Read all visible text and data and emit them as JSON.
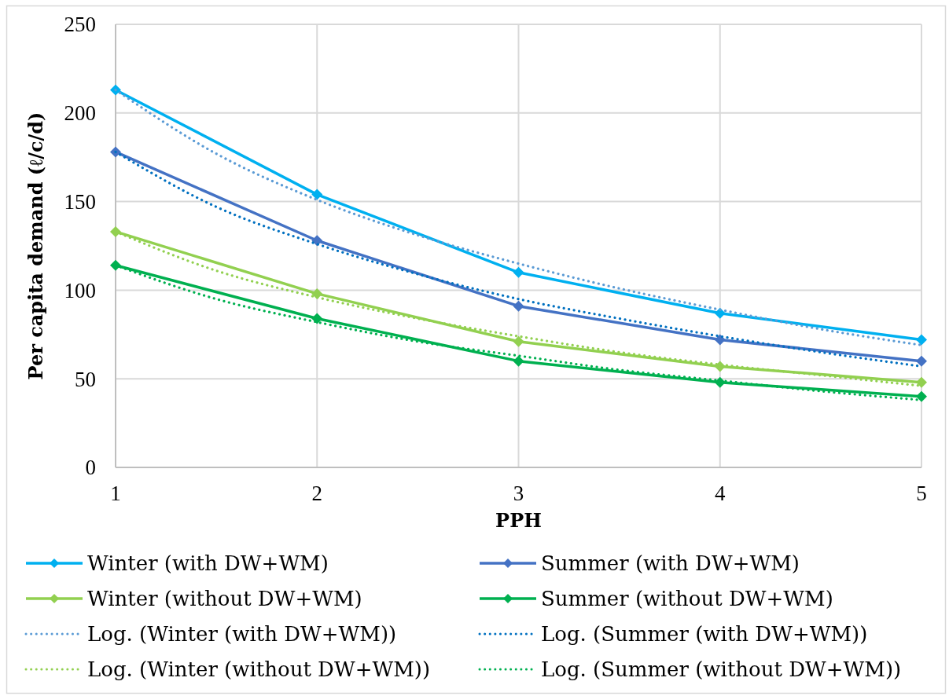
{
  "chart_data": {
    "type": "line",
    "xlabel": "PPH",
    "ylabel": "Per capita demand (ℓ/c/d)",
    "x": [
      1,
      2,
      3,
      4,
      5
    ],
    "xlim": [
      1,
      5
    ],
    "xticks": [
      1,
      2,
      3,
      4,
      5
    ],
    "ylim": [
      0,
      250
    ],
    "yticks": [
      0,
      50,
      100,
      150,
      200,
      250
    ],
    "grid": true,
    "legend": "bottom",
    "series": [
      {
        "name": "Winter (with DW+WM)",
        "color": "#00b0f0",
        "marker": "diamond",
        "line_style": "solid",
        "values": [
          213,
          154,
          110,
          87,
          72
        ]
      },
      {
        "name": "Summer (with DW+WM)",
        "color": "#4472c4",
        "marker": "diamond",
        "line_style": "solid",
        "values": [
          178,
          128,
          91,
          72,
          60
        ]
      },
      {
        "name": "Winter (without DW+WM)",
        "color": "#92d050",
        "marker": "diamond",
        "line_style": "solid",
        "values": [
          133,
          98,
          71,
          57,
          48
        ]
      },
      {
        "name": "Summer (without DW+WM)",
        "color": "#00b050",
        "marker": "diamond",
        "line_style": "solid",
        "values": [
          114,
          84,
          60,
          48,
          40
        ]
      },
      {
        "name": "Log. (Winter (with DW+WM))",
        "color": "#5b9bd5",
        "marker": "none",
        "line_style": "dotted",
        "x": [
          1,
          1.5,
          2,
          2.5,
          3,
          3.5,
          4,
          4.5,
          5
        ],
        "values": [
          213,
          177,
          151,
          131,
          115,
          101,
          89,
          78,
          69
        ]
      },
      {
        "name": "Log. (Summer (with DW+WM))",
        "color": "#0070c0",
        "marker": "none",
        "line_style": "dotted",
        "x": [
          1,
          1.5,
          2,
          2.5,
          3,
          3.5,
          4,
          4.5,
          5
        ],
        "values": [
          178,
          147,
          126,
          109,
          95,
          84,
          74,
          65,
          57
        ]
      },
      {
        "name": "Log. (Winter (without DW+WM))",
        "color": "#92d050",
        "marker": "none",
        "line_style": "dotted",
        "x": [
          1,
          1.5,
          2,
          2.5,
          3,
          3.5,
          4,
          4.5,
          5
        ],
        "values": [
          133,
          111,
          96,
          84,
          74,
          65,
          58,
          52,
          46
        ]
      },
      {
        "name": "Log. (Summer (without DW+WM))",
        "color": "#00b050",
        "marker": "none",
        "line_style": "dotted",
        "x": [
          1,
          1.5,
          2,
          2.5,
          3,
          3.5,
          4,
          4.5,
          5
        ],
        "values": [
          114,
          95,
          82,
          71,
          63,
          55,
          49,
          43,
          38
        ]
      }
    ]
  }
}
